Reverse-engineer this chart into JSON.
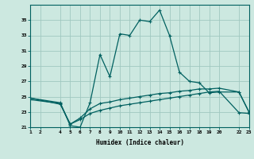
{
  "xlabel": "Humidex (Indice chaleur)",
  "background_color": "#cce8e0",
  "grid_color": "#a0c8c0",
  "line_color": "#006060",
  "xlim": [
    1,
    23
  ],
  "ylim": [
    21,
    37
  ],
  "yticks": [
    21,
    23,
    25,
    27,
    29,
    31,
    33,
    35
  ],
  "xticks": [
    1,
    2,
    4,
    5,
    6,
    7,
    8,
    9,
    10,
    11,
    12,
    13,
    14,
    15,
    16,
    17,
    18,
    19,
    20,
    22,
    23
  ],
  "series1_x": [
    1,
    4,
    5,
    6,
    7,
    8,
    9,
    10,
    11,
    12,
    13,
    14,
    15,
    16,
    17,
    18,
    19,
    20,
    22,
    23
  ],
  "series1_y": [
    24.8,
    24.2,
    21.2,
    21.0,
    24.2,
    30.5,
    27.6,
    33.2,
    33.0,
    35.0,
    34.8,
    36.3,
    33.0,
    28.2,
    27.0,
    26.8,
    25.5,
    25.6,
    25.6,
    23.0
  ],
  "series2_x": [
    1,
    4,
    5,
    6,
    7,
    8,
    9,
    10,
    11,
    12,
    13,
    14,
    15,
    16,
    17,
    18,
    19,
    20,
    22,
    23
  ],
  "series2_y": [
    24.8,
    24.0,
    21.4,
    22.2,
    23.4,
    24.1,
    24.3,
    24.6,
    24.8,
    25.0,
    25.2,
    25.4,
    25.5,
    25.7,
    25.8,
    26.0,
    26.0,
    26.1,
    25.6,
    23.0
  ],
  "series3_x": [
    1,
    4,
    5,
    6,
    7,
    8,
    9,
    10,
    11,
    12,
    13,
    14,
    15,
    16,
    17,
    18,
    19,
    20,
    22,
    23
  ],
  "series3_y": [
    24.6,
    24.1,
    21.4,
    22.0,
    22.8,
    23.2,
    23.5,
    23.8,
    24.0,
    24.2,
    24.4,
    24.6,
    24.8,
    25.0,
    25.2,
    25.4,
    25.6,
    25.7,
    22.9,
    22.8
  ]
}
